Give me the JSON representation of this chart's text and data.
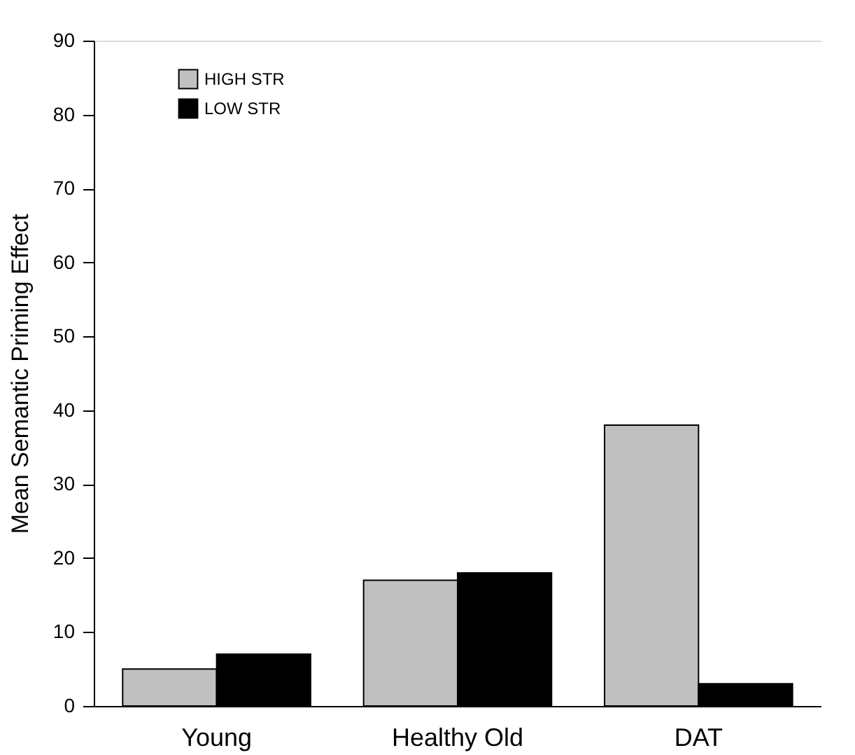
{
  "chart_data": {
    "type": "bar",
    "ylabel": "Mean Semantic Priming Effect",
    "categories": [
      "Young",
      "Healthy Old",
      "DAT"
    ],
    "series": [
      {
        "name": "HIGH STR",
        "color": "#c0c0c0",
        "values": [
          5,
          17,
          38
        ]
      },
      {
        "name": "LOW STR",
        "color": "#000000",
        "values": [
          7,
          18,
          3
        ]
      }
    ],
    "ylim": [
      0,
      90
    ],
    "yticks": [
      0,
      10,
      20,
      30,
      40,
      50,
      60,
      70,
      80,
      90
    ],
    "grid": false,
    "legend": "top left"
  }
}
